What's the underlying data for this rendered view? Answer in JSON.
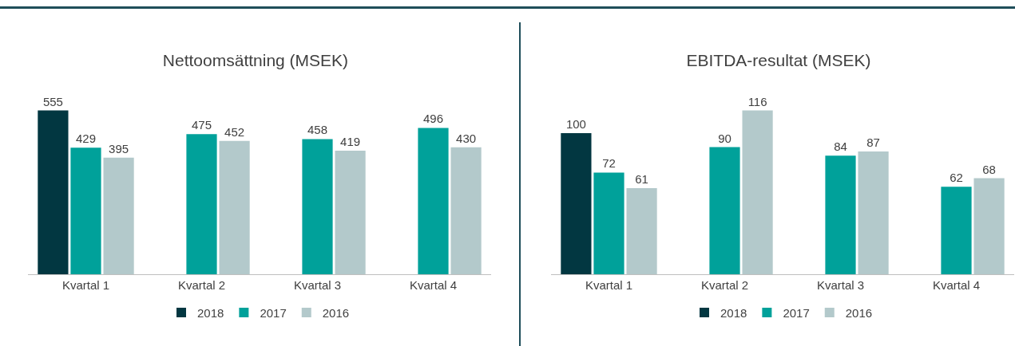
{
  "chart_data": [
    {
      "type": "bar",
      "title": "Nettoomsättning (MSEK)",
      "categories": [
        "Kvartal 1",
        "Kvartal 2",
        "Kvartal 3",
        "Kvartal 4"
      ],
      "data_labels": true,
      "legend": "bottom",
      "series": [
        {
          "name": "2018",
          "color": "#023741",
          "values": [
            555,
            null,
            null,
            null
          ]
        },
        {
          "name": "2017",
          "color": "#00a19a",
          "values": [
            429,
            475,
            458,
            496
          ]
        },
        {
          "name": "2016",
          "color": "#b3c9cb",
          "values": [
            395,
            452,
            419,
            430
          ]
        }
      ]
    },
    {
      "type": "bar",
      "title": "EBITDA-resultat (MSEK)",
      "categories": [
        "Kvartal 1",
        "Kvartal 2",
        "Kvartal 3",
        "Kvartal 4"
      ],
      "data_labels": true,
      "legend": "bottom",
      "series": [
        {
          "name": "2018",
          "color": "#023741",
          "values": [
            100,
            null,
            null,
            null
          ]
        },
        {
          "name": "2017",
          "color": "#00a19a",
          "values": [
            72,
            90,
            84,
            62
          ]
        },
        {
          "name": "2016",
          "color": "#b3c9cb",
          "values": [
            61,
            116,
            87,
            68
          ]
        }
      ]
    }
  ]
}
